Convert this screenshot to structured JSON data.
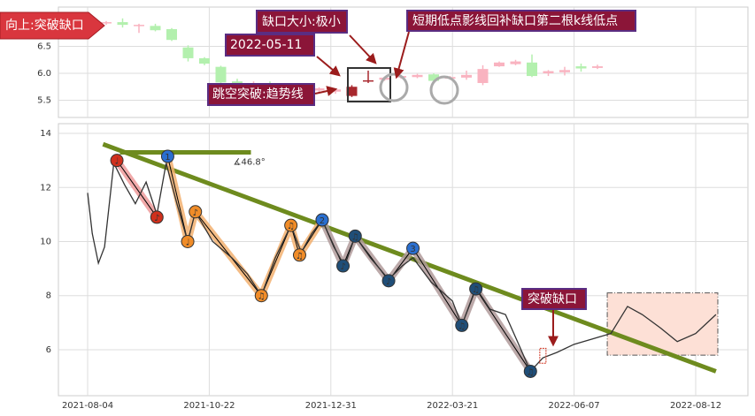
{
  "chart_data": [
    {
      "type": "candlestick",
      "ylim": [
        5.18,
        7.23
      ],
      "yticks": [
        6.5,
        {
          "value": 6.0,
          "label": "6.0"
        },
        5.5
      ],
      "banner": "向上:突破缺口",
      "labels": {
        "gap_size": "缺口大小:极小",
        "refill": "短期低点影线回补缺口第二根k线低点",
        "date": "2022-05-11",
        "jump": "跳空突破:趋势线"
      },
      "candles": [
        {
          "o": 6.93,
          "h": 6.97,
          "l": 6.9,
          "c": 6.95,
          "color": "#f9b3c0"
        },
        {
          "o": 6.95,
          "h": 7.02,
          "l": 6.85,
          "c": 6.9,
          "color": "#b3f0ae"
        },
        {
          "o": 6.88,
          "h": 6.92,
          "l": 6.75,
          "c": 6.9,
          "color": "#f9b3c0"
        },
        {
          "o": 6.88,
          "h": 6.92,
          "l": 6.78,
          "c": 6.8,
          "color": "#b3f0ae"
        },
        {
          "o": 6.82,
          "h": 6.84,
          "l": 6.6,
          "c": 6.62,
          "color": "#b3f0ae"
        },
        {
          "o": 6.48,
          "h": 6.52,
          "l": 6.22,
          "c": 6.28,
          "color": "#b3f0ae"
        },
        {
          "o": 6.28,
          "h": 6.3,
          "l": 6.15,
          "c": 6.18,
          "color": "#b3f0ae"
        },
        {
          "o": 6.12,
          "h": 6.14,
          "l": 5.8,
          "c": 5.83,
          "color": "#b3f0ae"
        },
        {
          "o": 5.85,
          "h": 5.9,
          "l": 5.75,
          "c": 5.78,
          "color": "#b3f0ae"
        },
        {
          "o": 5.78,
          "h": 5.85,
          "l": 5.74,
          "c": 5.82,
          "color": "#f9b3c0"
        },
        {
          "o": 5.82,
          "h": 5.85,
          "l": 5.72,
          "c": 5.75,
          "color": "#b3f0ae"
        },
        {
          "o": 5.72,
          "h": 5.8,
          "l": 5.7,
          "c": 5.78,
          "color": "#f9b3c0"
        },
        {
          "o": 5.78,
          "h": 5.8,
          "l": 5.68,
          "c": 5.7,
          "color": "#b3f0ae"
        },
        {
          "o": 5.68,
          "h": 5.74,
          "l": 5.65,
          "c": 5.72,
          "color": "#f9b3c0"
        },
        {
          "o": 5.66,
          "h": 5.72,
          "l": 5.62,
          "c": 5.7,
          "color": "#f9b3c0"
        },
        {
          "o": 5.58,
          "h": 5.78,
          "l": 5.56,
          "c": 5.75,
          "color": "#a8282e"
        },
        {
          "o": 5.85,
          "h": 6.05,
          "l": 5.82,
          "c": 5.87,
          "color": "#a8282e"
        },
        {
          "o": 5.88,
          "h": 5.94,
          "l": 5.86,
          "c": 5.92,
          "color": "#f9b3c0"
        },
        {
          "o": 5.92,
          "h": 5.97,
          "l": 5.9,
          "c": 5.95,
          "color": "#f9b3c0"
        },
        {
          "o": 5.93,
          "h": 5.99,
          "l": 5.91,
          "c": 5.97,
          "color": "#f9b3c0"
        },
        {
          "o": 5.98,
          "h": 6.0,
          "l": 5.84,
          "c": 5.86,
          "color": "#b3f0ae"
        },
        {
          "o": 5.9,
          "h": 5.95,
          "l": 5.88,
          "c": 5.93,
          "color": "#f9b3c0"
        },
        {
          "o": 5.92,
          "h": 6.05,
          "l": 5.88,
          "c": 5.97,
          "color": "#f9b3c0"
        },
        {
          "o": 5.82,
          "h": 6.15,
          "l": 5.78,
          "c": 6.08,
          "color": "#f9b3c0"
        },
        {
          "o": 6.13,
          "h": 6.22,
          "l": 6.12,
          "c": 6.2,
          "color": "#f9b3c0"
        },
        {
          "o": 6.17,
          "h": 6.25,
          "l": 6.15,
          "c": 6.22,
          "color": "#f9b3c0"
        },
        {
          "o": 6.2,
          "h": 6.35,
          "l": 5.93,
          "c": 5.95,
          "color": "#b3f0ae"
        },
        {
          "o": 6.0,
          "h": 6.06,
          "l": 5.95,
          "c": 6.04,
          "color": "#f9b3c0"
        },
        {
          "o": 6.02,
          "h": 6.12,
          "l": 5.96,
          "c": 6.06,
          "color": "#f9b3c0"
        },
        {
          "o": 6.13,
          "h": 6.18,
          "l": 6.03,
          "c": 6.09,
          "color": "#b3f0ae"
        },
        {
          "o": 6.1,
          "h": 6.16,
          "l": 6.08,
          "c": 6.13,
          "color": "#f9b3c0"
        }
      ]
    },
    {
      "type": "line",
      "ylim": [
        4.3,
        14.36
      ],
      "yticks": [
        6,
        8,
        10,
        12,
        14
      ],
      "xticks": [
        "2021-08-04",
        "2021-10-22",
        "2021-12-31",
        "2022-03-21",
        "2022-06-07",
        "2022-08-12"
      ],
      "grid": true,
      "color": "#333333",
      "x": [
        "2021-08-04",
        "2021-08-07",
        "2021-08-11",
        "2021-08-15",
        "2021-08-21",
        "2021-08-28",
        "2021-09-04",
        "2021-09-11",
        "2021-09-18",
        "2021-09-24",
        "2021-10-01",
        "2021-10-08",
        "2021-10-13",
        "2021-10-24",
        "2021-11-04",
        "2021-11-13",
        "2021-11-21",
        "2021-11-29",
        "2021-12-08",
        "2021-12-14",
        "2021-12-20",
        "2021-12-26",
        "2022-01-02",
        "2022-01-09",
        "2022-01-16",
        "2022-01-26",
        "2022-02-07",
        "2022-02-16",
        "2022-02-23",
        "2022-03-07",
        "2022-03-21",
        "2022-03-27",
        "2022-04-05",
        "2022-04-14",
        "2022-04-24",
        "2022-05-04",
        "2022-05-10",
        "2022-05-18",
        "2022-05-27",
        "2022-06-07",
        "2022-06-17",
        "2022-06-27",
        "2022-07-06",
        "2022-07-14",
        "2022-07-24",
        "2022-08-02",
        "2022-08-12",
        "2022-08-23"
      ],
      "values": [
        11.8,
        10.3,
        9.2,
        9.8,
        12.9,
        12.1,
        11.4,
        12.2,
        11.0,
        12.9,
        11.4,
        10.0,
        11.1,
        10.0,
        9.4,
        8.8,
        8.0,
        9.4,
        10.6,
        9.6,
        10.3,
        10.8,
        9.8,
        9.1,
        10.2,
        9.4,
        8.6,
        9.1,
        9.4,
        8.5,
        7.8,
        6.9,
        8.3,
        7.5,
        7.3,
        6.0,
        5.2,
        5.7,
        5.9,
        6.2,
        6.4,
        6.6,
        7.6,
        7.3,
        6.8,
        6.3,
        6.6,
        7.3
      ],
      "trendline": {
        "color": "#6e8b1e",
        "from": {
          "date": "2021-08-14",
          "value": 13.6
        },
        "to": {
          "date": "2022-08-23",
          "value": 5.2
        }
      },
      "level": {
        "color": "#6e8b1e",
        "from": "2021-08-25",
        "to": "2021-11-15",
        "value": 13.3
      },
      "angle_label": "∡46.8°",
      "zigzag": [
        {
          "color": "#ee9a9a",
          "points": [
            {
              "date": "2021-08-23",
              "value": 13.0,
              "glyph": "♩",
              "color": "#d0301c"
            },
            {
              "date": "2021-09-18",
              "value": 10.9,
              "glyph": "♪",
              "color": "#d0301c"
            }
          ]
        },
        {
          "color": "#f2b070",
          "points": [
            {
              "date": "2021-09-25",
              "value": 13.15,
              "glyph": "1",
              "color": "#2a6fd0"
            },
            {
              "date": "2021-10-08",
              "value": 10.0,
              "glyph": "♩",
              "color": "#f08c28"
            },
            {
              "date": "2021-10-13",
              "value": 11.1,
              "glyph": "♪",
              "color": "#f08c28"
            },
            {
              "date": "2021-11-21",
              "value": 8.0,
              "glyph": "♫",
              "color": "#f08c28"
            },
            {
              "date": "2021-12-08",
              "value": 10.6,
              "glyph": "♫",
              "color": "#f08c28"
            },
            {
              "date": "2021-12-13",
              "value": 9.5,
              "glyph": "♫",
              "color": "#f08c28"
            },
            {
              "date": "2021-12-26",
              "value": 10.8,
              "glyph": "2",
              "color": "#2a6fd0"
            }
          ]
        },
        {
          "color": "#b09a9a",
          "points": [
            {
              "date": "2021-12-26",
              "value": 10.8,
              "glyph": "2",
              "color": "#2a6fd0"
            },
            {
              "date": "2022-01-08",
              "value": 9.1,
              "glyph": "♪",
              "color": "#1f4e78"
            },
            {
              "date": "2022-01-16",
              "value": 10.2,
              "glyph": "♫",
              "color": "#1f4e78"
            },
            {
              "date": "2022-02-07",
              "value": 8.55,
              "glyph": "♪",
              "color": "#1f4e78"
            },
            {
              "date": "2022-02-23",
              "value": 9.75,
              "glyph": "3",
              "color": "#2a6fd0"
            },
            {
              "date": "2022-03-27",
              "value": 6.9,
              "glyph": "♫",
              "color": "#1f4e78"
            },
            {
              "date": "2022-04-05",
              "value": 8.25,
              "glyph": "♫",
              "color": "#1f4e78"
            },
            {
              "date": "2022-05-10",
              "value": 5.2,
              "glyph": "♫",
              "color": "#1f4e78"
            }
          ]
        }
      ],
      "gap_marker": {
        "date": "2022-05-18",
        "low": 5.5,
        "high": 6.05
      },
      "breakout_label": "突破缺口",
      "zone": {
        "from": "2022-06-25",
        "to": "2022-08-24",
        "low": 5.8,
        "high": 8.1
      }
    }
  ]
}
